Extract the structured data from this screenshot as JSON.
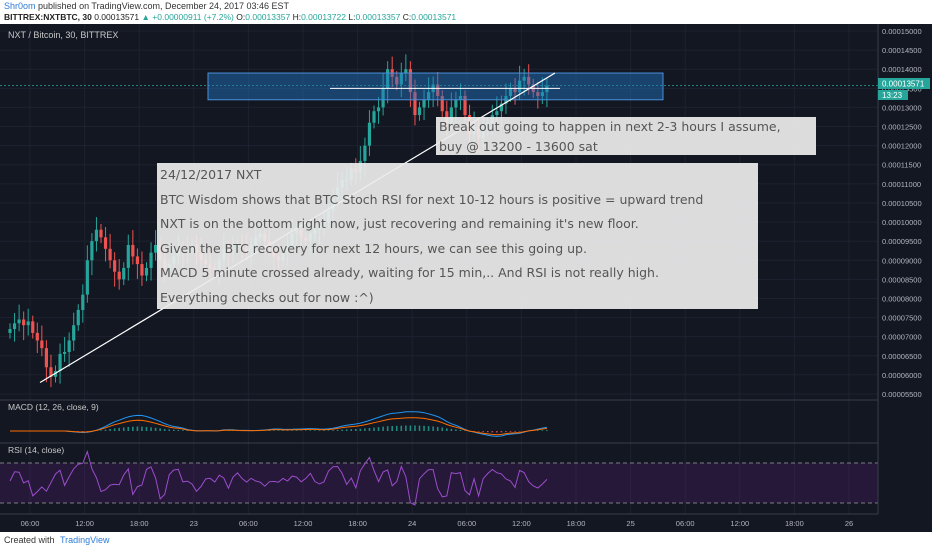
{
  "header": {
    "author": "Shr0om",
    "published": "published on TradingView.com, December 24, 2017 03:46 EST",
    "symbol_line": "BITTREX:NXTBTC, 30",
    "last": "0.00013571",
    "change": "▲ +0.00000911 (+7.2%)",
    "o_label": "O:",
    "o": "0.00013357",
    "h_label": "H:",
    "h": "0.00013722",
    "l_label": "L:",
    "l": "0.00013357",
    "c_label": "C:",
    "c": "0.00013571"
  },
  "chart_title": "NXT / Bitcoin, 30, BITTREX",
  "price_tag": "0.00013571",
  "time_tag": "13:23",
  "macd_label": "MACD (12, 26, close, 9)",
  "rsi_label": "RSI (14, close)",
  "notes": {
    "main": [
      "24/12/2017 NXT",
      "BTC Wisdom shows that BTC Stoch RSI for next 10-12 hours is positive = upward trend",
      "NXT is on the bottom right now, just recovering and remaining it's new floor.",
      "Given the BTC recovery for next 12 hours, we can see this going up.",
      "MACD 5 minute crossed already, waiting for 15 min,.. And RSI is not really high.",
      "Everything checks out for now :^)"
    ],
    "side": [
      "Break out going to happen in next 2-3 hours I assume,",
      "buy @ 13200 - 13600 sat"
    ]
  },
  "footer": {
    "created_with": "Created with",
    "brand": "TradingView"
  },
  "colors": {
    "up": "#26a69a",
    "down": "#ef5350",
    "bg": "#131722",
    "macd": "#2196f3",
    "signal": "#ff6d00",
    "rsi": "#7b1fa2"
  },
  "chart_data": {
    "type": "candlestick",
    "interval": "30",
    "price_axis": {
      "ticks": [
        "0.00015000",
        "0.00014500",
        "0.00014000",
        "0.00013500",
        "0.00013000",
        "0.00012500",
        "0.00012000",
        "0.00011500",
        "0.00011000",
        "0.00010500",
        "0.00010000",
        "0.00009500",
        "0.00009000",
        "0.00008500",
        "0.00008000",
        "0.00007500",
        "0.00007000",
        "0.00006500",
        "0.00006000",
        "0.00005500"
      ],
      "range": [
        5.4e-05,
        0.000154
      ]
    },
    "time_axis": {
      "ticks": [
        "06:00",
        "12:00",
        "18:00",
        "23",
        "06:00",
        "12:00",
        "18:00",
        "24",
        "06:00",
        "12:00",
        "18:00",
        "25",
        "06:00",
        "12:00",
        "18:00",
        "26"
      ],
      "bars_per_tick": 12
    },
    "close_prices": [
      7.2,
      7.35,
      7.45,
      7.3,
      7.4,
      7.1,
      6.9,
      6.7,
      6.2,
      5.95,
      6.1,
      6.55,
      6.6,
      6.9,
      7.3,
      7.7,
      8.1,
      9.0,
      9.5,
      9.8,
      9.6,
      9.3,
      9.0,
      8.7,
      8.5,
      8.8,
      9.4,
      9.1,
      8.9,
      8.6,
      8.8,
      9.2,
      9.4,
      9.0,
      8.7,
      8.9,
      9.1,
      9.3,
      9.2,
      9.3,
      9.4,
      9.2,
      9.0,
      8.9,
      8.8,
      8.7,
      9.0,
      9.3,
      9.2,
      9.3,
      9.4,
      9.3,
      9.2,
      9.4,
      9.6,
      9.7,
      9.5,
      9.3,
      9.1,
      9.0,
      9.2,
      9.4,
      9.7,
      9.8,
      9.6,
      9.5,
      9.7,
      9.8,
      9.9,
      10.0,
      10.3,
      10.6,
      10.9,
      11.1,
      11.1,
      11.4,
      11.3,
      11.6,
      12.0,
      12.6,
      12.9,
      13.0,
      13.5,
      14.0,
      13.8,
      13.6,
      13.9,
      14.0,
      13.4,
      12.8,
      13.0,
      13.2,
      13.4,
      13.6,
      13.3,
      12.9,
      12.6,
      13.0,
      13.2,
      13.3,
      12.8,
      12.3,
      12.5,
      12.2,
      12.4,
      12.6,
      12.8,
      12.9,
      13.1,
      13.3,
      13.5,
      13.4,
      13.7,
      13.8,
      13.6,
      13.4,
      13.3,
      13.4,
      13.57
    ],
    "macd_axis": {
      "ticks": [
        "0.0000"
      ]
    },
    "rsi_axis": {
      "ticks": [
        "80.0000",
        "60.0000",
        "40.0000"
      ],
      "bands": [
        70,
        30
      ]
    }
  }
}
